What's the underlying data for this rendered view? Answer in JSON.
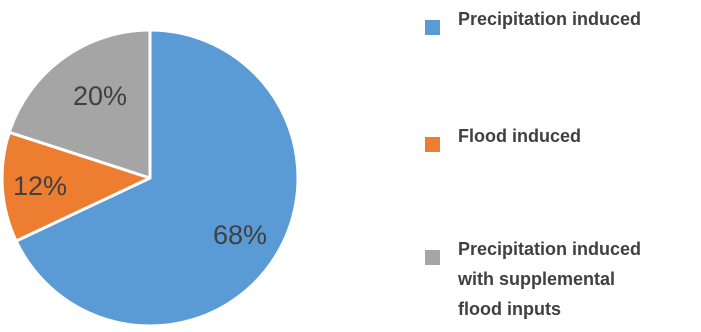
{
  "chart_data": {
    "type": "pie",
    "title": "",
    "slices": [
      {
        "name": "Precipitation induced",
        "value": 68,
        "label": "68%",
        "color": "#5B9BD5"
      },
      {
        "name": "Flood induced",
        "value": 12,
        "label": "12%",
        "color": "#ED7D31"
      },
      {
        "name": "Precipitation induced with supplemental flood inputs",
        "value": 20,
        "label": "20%",
        "color": "#A5A5A5"
      }
    ],
    "start_angle": "12 o'clock",
    "direction": "clockwise",
    "legend": {
      "placement": "right",
      "entries": [
        {
          "lines": [
            "Precipitation induced"
          ],
          "color": "#5B9BD5"
        },
        {
          "lines": [
            "Flood induced"
          ],
          "color": "#ED7D31"
        },
        {
          "lines": [
            "Precipitation induced",
            "with supplemental",
            "flood inputs"
          ],
          "color": "#A5A5A5"
        }
      ]
    }
  }
}
